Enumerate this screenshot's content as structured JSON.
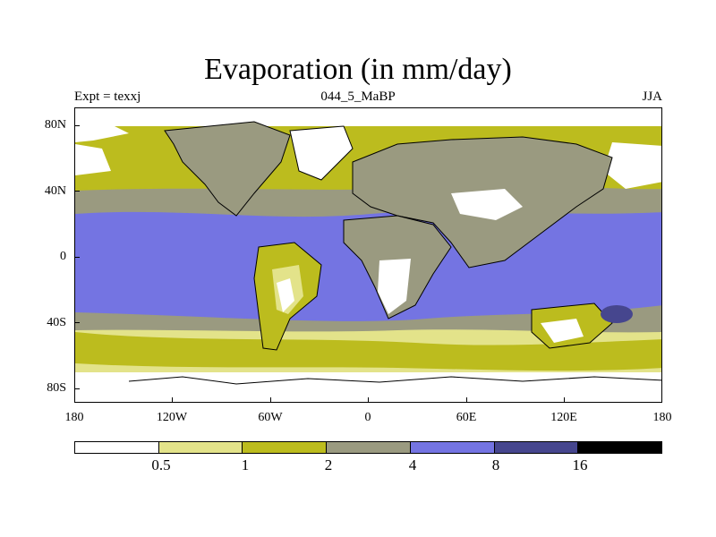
{
  "header": {
    "title": "Evaporation (in mm/day)",
    "left_label": "Expt = texxj",
    "center_label": "044_5_MaBP",
    "right_label": "JJA"
  },
  "axes": {
    "x_ticks": [
      "180",
      "120W",
      "60W",
      "0",
      "60E",
      "120E",
      "180"
    ],
    "y_ticks": [
      "80N",
      "40N",
      "0",
      "40S",
      "80S"
    ]
  },
  "colorbar": {
    "colors": [
      "#ffffff",
      "#e3e38a",
      "#bcbc1e",
      "#9a9a80",
      "#7474e2",
      "#46468e",
      "#000000"
    ],
    "labels": [
      "0.5",
      "1",
      "2",
      "4",
      "8",
      "16"
    ]
  },
  "map": {
    "fill_colors": {
      "ocean_polar": "#ffffff",
      "low_band": "#e3e38a",
      "mid_band": "#bcbc1e",
      "subtropical": "#9a9a80",
      "tropical": "#7474e2",
      "high": "#46468e"
    }
  }
}
